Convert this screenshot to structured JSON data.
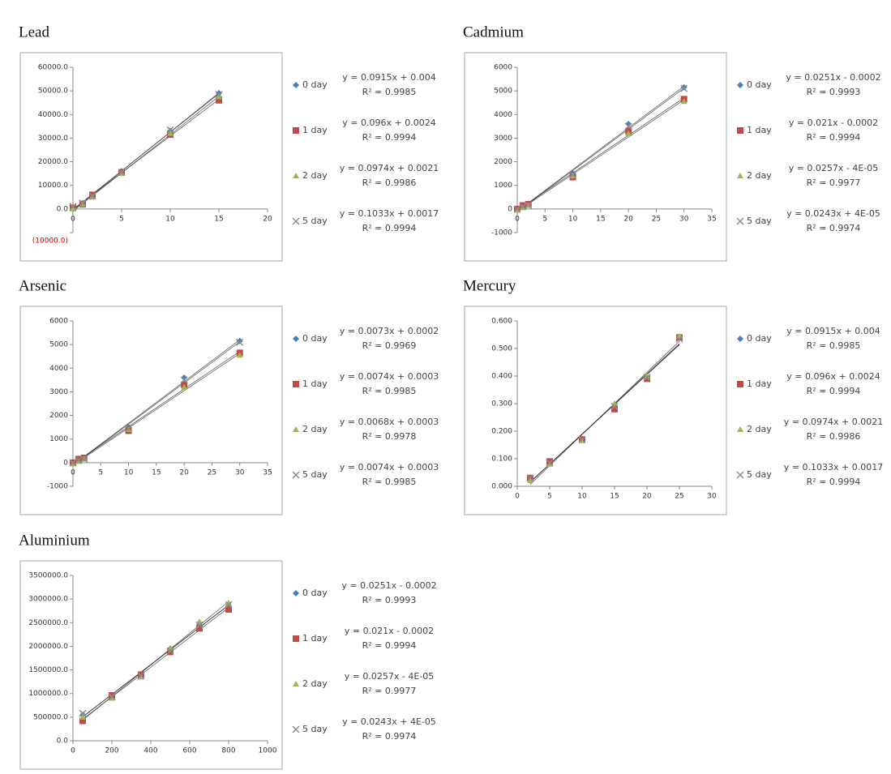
{
  "chart_data": [
    {
      "type": "scatter",
      "title": "Lead",
      "x": [
        0,
        1,
        2,
        5,
        10,
        15
      ],
      "series": [
        {
          "name": "0 day",
          "color": "#4a7ebb",
          "marker": "diamond",
          "values": [
            0,
            2500,
            5500,
            16000,
            33000,
            49000
          ],
          "equation": "y = 0.0915x + 0.004",
          "r2": "R² = 0.9985"
        },
        {
          "name": "1 day",
          "color": "#be4b48",
          "marker": "square",
          "values": [
            500,
            2000,
            6000,
            15500,
            31500,
            46000
          ],
          "equation": "y = 0.096x + 0.0024",
          "r2": "R² = 0.9994"
        },
        {
          "name": "2 day",
          "color": "#98b954",
          "marker": "triangle",
          "values": [
            0,
            2000,
            5000,
            15000,
            32000,
            47500
          ],
          "equation": "y = 0.0974x + 0.0021",
          "r2": "R² = 0.9986"
        },
        {
          "name": "5 day",
          "color": "#8c8c8c",
          "marker": "x",
          "values": [
            1000,
            2500,
            5500,
            15500,
            33500,
            48500
          ],
          "equation": "y = 0.1033x + 0.0017",
          "r2": "R² = 0.9994"
        }
      ],
      "xlim": [
        0,
        20
      ],
      "xticks": [
        0,
        5,
        10,
        15,
        20
      ],
      "ylim": [
        -10000,
        60000
      ],
      "yticks": [
        {
          "value": -10000,
          "label": "(10000.0)"
        },
        {
          "value": 0,
          "label": "0.0"
        },
        {
          "value": 10000,
          "label": "10000.0"
        },
        {
          "value": 20000,
          "label": "20000.0"
        },
        {
          "value": 30000,
          "label": "30000.0"
        },
        {
          "value": 40000,
          "label": "40000.0"
        },
        {
          "value": 50000,
          "label": "50000.0"
        },
        {
          "value": 60000,
          "label": "60000.0"
        }
      ],
      "negative_tick_color": "#c00000"
    },
    {
      "type": "scatter",
      "title": "Cadmium",
      "x": [
        0,
        1,
        2,
        10,
        20,
        30
      ],
      "series": [
        {
          "name": "0 day",
          "color": "#4a7ebb",
          "marker": "diamond",
          "values": [
            0,
            100,
            200,
            1500,
            3600,
            5150
          ],
          "equation": "y = 0.0251x - 0.0002",
          "r2": "R² = 0.9993"
        },
        {
          "name": "1 day",
          "color": "#be4b48",
          "marker": "square",
          "values": [
            0,
            150,
            200,
            1350,
            3300,
            4650
          ],
          "equation": "y = 0.021x - 0.0002",
          "r2": "R² = 0.9994"
        },
        {
          "name": "2 day",
          "color": "#98b954",
          "marker": "triangle",
          "values": [
            -50,
            50,
            150,
            1400,
            3200,
            4550
          ],
          "equation": "y = 0.0257x - 4E-05",
          "r2": "R² = 0.9977"
        },
        {
          "name": "5 day",
          "color": "#8c8c8c",
          "marker": "x",
          "values": [
            0,
            100,
            150,
            1450,
            3500,
            5100
          ],
          "equation": "y = 0.0243x + 4E-05",
          "r2": "R² = 0.9974"
        }
      ],
      "xlim": [
        0,
        35
      ],
      "xticks": [
        0,
        5,
        10,
        15,
        20,
        25,
        30,
        35
      ],
      "ylim": [
        -1000,
        6000
      ],
      "yticks": [
        -1000,
        0,
        1000,
        2000,
        3000,
        4000,
        5000,
        6000
      ]
    },
    {
      "type": "scatter",
      "title": "Arsenic",
      "x": [
        0,
        1,
        2,
        10,
        20,
        30
      ],
      "series": [
        {
          "name": "0 day",
          "color": "#4a7ebb",
          "marker": "diamond",
          "values": [
            0,
            100,
            200,
            1500,
            3600,
            5150
          ],
          "equation": "y = 0.0073x + 0.0002",
          "r2": "R² = 0.9969"
        },
        {
          "name": "1 day",
          "color": "#be4b48",
          "marker": "square",
          "values": [
            0,
            150,
            200,
            1350,
            3300,
            4650
          ],
          "equation": "y = 0.0074x + 0.0003",
          "r2": "R² = 0.9985"
        },
        {
          "name": "2 day",
          "color": "#98b954",
          "marker": "triangle",
          "values": [
            -50,
            50,
            150,
            1400,
            3200,
            4550
          ],
          "equation": "y = 0.0068x + 0.0003",
          "r2": "R² = 0.9978"
        },
        {
          "name": "5 day",
          "color": "#8c8c8c",
          "marker": "x",
          "values": [
            0,
            100,
            150,
            1450,
            3500,
            5100
          ],
          "equation": "y = 0.0074x + 0.0003",
          "r2": "R² = 0.9985"
        }
      ],
      "xlim": [
        0,
        35
      ],
      "xticks": [
        0,
        5,
        10,
        15,
        20,
        25,
        30,
        35
      ],
      "ylim": [
        -1000,
        6000
      ],
      "yticks": [
        -1000,
        0,
        1000,
        2000,
        3000,
        4000,
        5000,
        6000
      ]
    },
    {
      "type": "scatter",
      "title": "Mercury",
      "x": [
        2,
        5,
        10,
        15,
        20,
        25
      ],
      "series": [
        {
          "name": "0 day",
          "color": "#4a7ebb",
          "marker": "diamond",
          "values": [
            0.03,
            0.085,
            0.17,
            0.29,
            0.395,
            0.54
          ],
          "equation": "y = 0.0915x + 0.004",
          "r2": "R² = 0.9985"
        },
        {
          "name": "1 day",
          "color": "#be4b48",
          "marker": "square",
          "values": [
            0.03,
            0.09,
            0.17,
            0.28,
            0.39,
            0.54
          ],
          "equation": "y = 0.096x + 0.0024",
          "r2": "R² = 0.9994"
        },
        {
          "name": "2 day",
          "color": "#98b954",
          "marker": "triangle",
          "values": [
            0.02,
            0.08,
            0.165,
            0.3,
            0.4,
            0.545
          ],
          "equation": "y = 0.0974x + 0.0021",
          "r2": "R² = 0.9986"
        },
        {
          "name": "5 day",
          "color": "#8c8c8c",
          "marker": "x",
          "values": [
            0.03,
            0.085,
            0.17,
            0.29,
            0.395,
            0.535
          ],
          "equation": "y = 0.1033x + 0.0017",
          "r2": "R² = 0.9994"
        }
      ],
      "xlim": [
        0,
        30
      ],
      "xticks": [
        0,
        5,
        10,
        15,
        20,
        25,
        30
      ],
      "ylim": [
        0,
        0.6
      ],
      "yticks": [
        {
          "value": 0,
          "label": "0.000"
        },
        {
          "value": 0.1,
          "label": "0.100"
        },
        {
          "value": 0.2,
          "label": "0.200"
        },
        {
          "value": 0.3,
          "label": "0.300"
        },
        {
          "value": 0.4,
          "label": "0.400"
        },
        {
          "value": 0.5,
          "label": "0.500"
        },
        {
          "value": 0.6,
          "label": "0.600"
        }
      ]
    },
    {
      "type": "scatter",
      "title": "Aluminium",
      "x": [
        50,
        200,
        350,
        500,
        650,
        800
      ],
      "series": [
        {
          "name": "0 day",
          "color": "#4a7ebb",
          "marker": "diamond",
          "values": [
            550000,
            950000,
            1400000,
            1950000,
            2450000,
            2850000
          ],
          "equation": "y = 0.0251x - 0.0002",
          "r2": "R² = 0.9993"
        },
        {
          "name": "1 day",
          "color": "#be4b48",
          "marker": "square",
          "values": [
            420000,
            960000,
            1400000,
            1880000,
            2380000,
            2780000
          ],
          "equation": "y = 0.021x - 0.0002",
          "r2": "R² = 0.9994"
        },
        {
          "name": "2 day",
          "color": "#98b954",
          "marker": "triangle",
          "values": [
            500000,
            900000,
            1350000,
            1960000,
            2520000,
            2920000
          ],
          "equation": "y = 0.0257x - 4E-05",
          "r2": "R² = 0.9977"
        },
        {
          "name": "5 day",
          "color": "#8c8c8c",
          "marker": "x",
          "values": [
            580000,
            930000,
            1380000,
            1900000,
            2450000,
            2880000
          ],
          "equation": "y = 0.0243x + 4E-05",
          "r2": "R² = 0.9974"
        }
      ],
      "xlim": [
        0,
        1000
      ],
      "xticks": [
        0,
        200,
        400,
        600,
        800,
        1000
      ],
      "ylim": [
        0,
        3500000
      ],
      "yticks": [
        {
          "value": 0,
          "label": "0.0"
        },
        {
          "value": 500000,
          "label": "500000.0"
        },
        {
          "value": 1000000,
          "label": "1000000.0"
        },
        {
          "value": 1500000,
          "label": "1500000.0"
        },
        {
          "value": 2000000,
          "label": "2000000.0"
        },
        {
          "value": 2500000,
          "label": "2500000.0"
        },
        {
          "value": 3000000,
          "label": "3000000.0"
        },
        {
          "value": 3500000,
          "label": "3500000.0"
        }
      ]
    }
  ]
}
